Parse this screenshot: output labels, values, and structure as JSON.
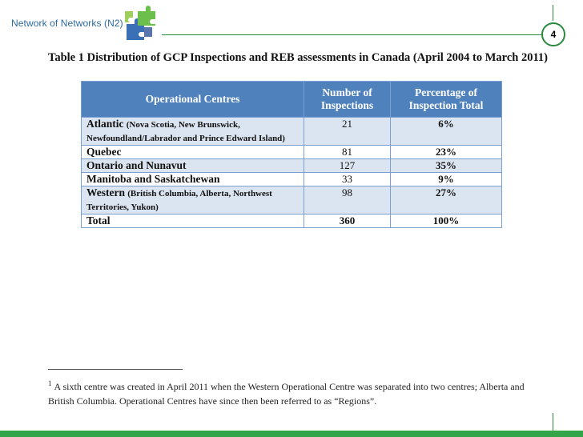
{
  "header": {
    "brand": "Network of Networks (N2)",
    "page_number": "4"
  },
  "table": {
    "caption": "Table 1 Distribution of GCP Inspections and REB assessments in Canada (April 2004 to March 2011)",
    "columns": [
      "Operational Centres",
      "Number of Inspections",
      "Percentage of Inspection Total"
    ],
    "rows": [
      {
        "region": "Atlantic",
        "detail": "(Nova Scotia, New Brunswick, Newfoundland/Labrador and Prince Edward Island)",
        "count": "21",
        "percent": "6%"
      },
      {
        "region": "Quebec",
        "detail": "",
        "count": "81",
        "percent": "23%"
      },
      {
        "region": "Ontario and Nunavut",
        "detail": "",
        "count": "127",
        "percent": "35%"
      },
      {
        "region": "Manitoba and Saskatchewan",
        "detail": "",
        "count": "33",
        "percent": "9%"
      },
      {
        "region": "Western",
        "detail": "(British Columbia, Alberta, Northwest Territories, Yukon)",
        "count": "98",
        "percent": "27%"
      }
    ],
    "total": {
      "label": "Total",
      "count": "360",
      "percent": "100%"
    }
  },
  "footnote": {
    "marker": "1",
    "text": "A sixth centre was created in April 2011 when the Western Operational Centre was separated into two centres; Alberta and British Columbia. Operational Centres have since then been referred to as “Regions”."
  },
  "colors": {
    "accent_green": "#33a548",
    "header_blue": "#4f81bd",
    "row_blue": "#dbe5f1",
    "brand_text": "#2d6a9f"
  },
  "icons": [
    "puzzle-logo-icon"
  ]
}
